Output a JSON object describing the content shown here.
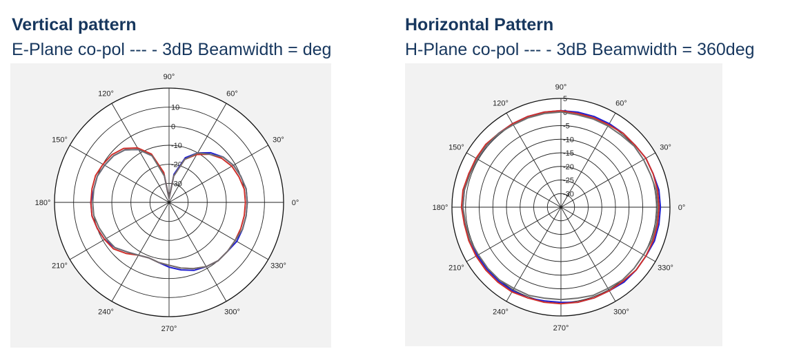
{
  "left": {
    "title": "Vertical pattern",
    "subtitle": "E-Plane co-pol --- - 3dB Beamwidth = deg"
  },
  "right": {
    "title": "Horizontal Pattern",
    "subtitle": "H-Plane co-pol --- - 3dB Beamwidth = 360deg"
  },
  "colors": {
    "text": "#17375e",
    "background": "#f2f2f2",
    "series": [
      "#1f1fd0",
      "#d0302a",
      "#707070"
    ]
  },
  "chart_data": [
    {
      "type": "polar-line",
      "angle_ticks": [
        "0°",
        "30°",
        "60°",
        "90°",
        "120°",
        "150°",
        "180°",
        "210°",
        "240°",
        "270°",
        "300°",
        "330°"
      ],
      "radial_ticks": [
        "10",
        "0",
        "-10",
        "-20",
        "-30"
      ],
      "rlim": [
        -40,
        20
      ],
      "grid": true,
      "angles_deg": [
        0,
        10,
        20,
        30,
        40,
        50,
        60,
        70,
        80,
        90,
        100,
        110,
        120,
        130,
        140,
        150,
        160,
        170,
        180,
        190,
        200,
        210,
        220,
        230,
        240,
        250,
        260,
        270,
        280,
        290,
        300,
        310,
        320,
        330,
        340,
        350
      ],
      "series": [
        {
          "color": "#1f1fd0",
          "values_db": [
            1,
            1,
            0,
            -1,
            -3,
            -6,
            -10,
            -15,
            -25,
            -38,
            -25,
            -14,
            -8,
            -4,
            -2,
            -1,
            0,
            0,
            1,
            1,
            0,
            -1,
            -3,
            -6,
            -8,
            -9,
            -8,
            -6,
            -4,
            -2,
            -1,
            0,
            0,
            1,
            1,
            1
          ]
        },
        {
          "color": "#d0302a",
          "values_db": [
            0,
            0,
            -1,
            -2,
            -4,
            -7,
            -11,
            -16,
            -26,
            -38,
            -24,
            -13,
            -7,
            -3,
            -1,
            0,
            1,
            1,
            1,
            1,
            0,
            -1,
            -2,
            -5,
            -8,
            -9,
            -8,
            -7,
            -5,
            -3,
            -1,
            0,
            0,
            0,
            0,
            0
          ]
        },
        {
          "color": "#707070",
          "values_db": [
            1,
            1,
            0,
            -1,
            -3,
            -7,
            -10,
            -16,
            -26,
            -38,
            -26,
            -14,
            -8,
            -4,
            -2,
            -1,
            0,
            0,
            0,
            0,
            -1,
            -2,
            -3,
            -6,
            -8,
            -9,
            -8,
            -7,
            -5,
            -3,
            -1,
            0,
            0,
            0,
            1,
            1
          ]
        }
      ]
    },
    {
      "type": "polar-line",
      "angle_ticks": [
        "0°",
        "30°",
        "60°",
        "90°",
        "120°",
        "150°",
        "180°",
        "210°",
        "240°",
        "270°",
        "300°",
        "330°"
      ],
      "radial_ticks": [
        "5",
        "0",
        "-5",
        "-10",
        "-15",
        "-20",
        "-25",
        "-30"
      ],
      "rlim": [
        -35,
        5
      ],
      "grid": true,
      "angles_deg": [
        0,
        10,
        20,
        30,
        40,
        50,
        60,
        70,
        80,
        90,
        100,
        110,
        120,
        130,
        140,
        150,
        160,
        170,
        180,
        190,
        200,
        210,
        220,
        230,
        240,
        250,
        260,
        270,
        280,
        290,
        300,
        310,
        320,
        330,
        340,
        350
      ],
      "series": [
        {
          "color": "#1f1fd0",
          "values_db": [
            1.5,
            1.5,
            1,
            1,
            0.5,
            0.5,
            0.5,
            0.5,
            0.5,
            0.5,
            0.5,
            0.5,
            0.5,
            0.5,
            0.5,
            0.5,
            1,
            1,
            1,
            1,
            0.5,
            0.5,
            0.5,
            0.5,
            0.5,
            0.5,
            0,
            0,
            0.5,
            0.5,
            0.5,
            1,
            1,
            1,
            1.5,
            1.5
          ]
        },
        {
          "color": "#d0302a",
          "values_db": [
            1,
            1,
            1,
            1,
            0.5,
            0.5,
            0,
            0,
            0,
            0.5,
            0.5,
            0.5,
            0.5,
            0.5,
            1,
            1,
            1,
            1.5,
            1.5,
            1,
            1,
            1,
            1,
            1,
            1,
            0.5,
            0.5,
            0.5,
            0.5,
            0.5,
            0.5,
            0.5,
            1,
            1,
            1,
            1
          ]
        },
        {
          "color": "#707070",
          "values_db": [
            0.5,
            0.5,
            0,
            0,
            0,
            -0.5,
            -0.5,
            -0.5,
            -0.5,
            0,
            0,
            0,
            0,
            0.5,
            0.5,
            0.5,
            0.5,
            1,
            1,
            0.5,
            0.5,
            0,
            0,
            0,
            -0.5,
            -0.5,
            -1,
            -1,
            -1,
            -0.5,
            -0.5,
            0,
            0,
            0,
            0.5,
            0.5
          ]
        }
      ]
    }
  ]
}
